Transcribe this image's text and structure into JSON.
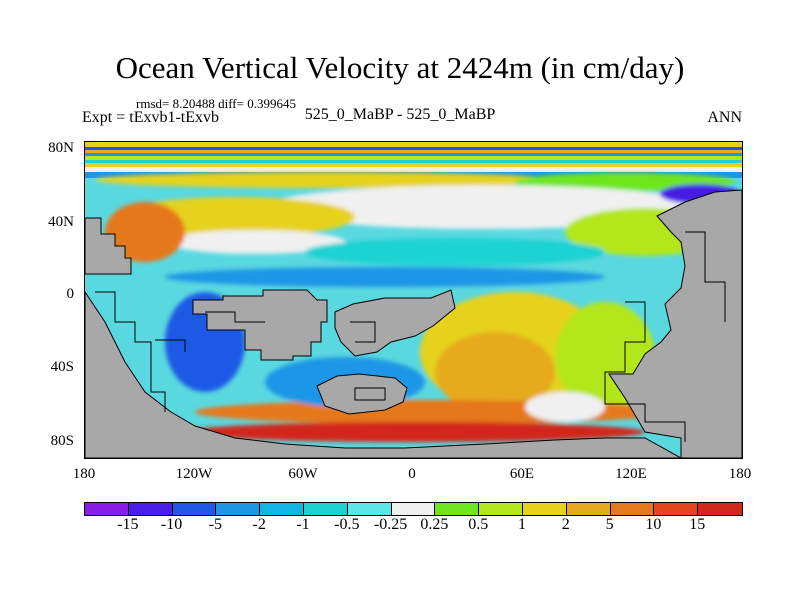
{
  "title": "Ocean Vertical Velocity at 2424m (in cm/day)",
  "stats_line": "rmsd= 8.20488  diff= 0.399645",
  "experiment_line": "Expt = tExvb1-tExvb",
  "center_label": "525_0_MaBP - 525_0_MaBP",
  "season_label": "ANN",
  "lat_labels": [
    "80N",
    "40N",
    "0",
    "40S",
    "80S"
  ],
  "lon_labels": [
    "180",
    "120W",
    "60W",
    "0",
    "60E",
    "120E",
    "180"
  ],
  "colorbar": {
    "labels": [
      "-15",
      "-10",
      "-5",
      "-2",
      "-1",
      "-0.5",
      "-0.25",
      "0.25",
      "0.5",
      "1",
      "2",
      "5",
      "10",
      "15"
    ],
    "colors": [
      "#8a1ee6",
      "#4a1ee6",
      "#1e5ae6",
      "#1e96e6",
      "#12b4e6",
      "#1ed2d2",
      "#5ae6e6",
      "#f0f0f0",
      "#6ee61e",
      "#b4e61e",
      "#e6d21e",
      "#e6aa1e",
      "#e6781e",
      "#e6461e",
      "#d2281e"
    ]
  },
  "colors": {
    "land": "#a8a8a8",
    "coast": "#000000"
  }
}
